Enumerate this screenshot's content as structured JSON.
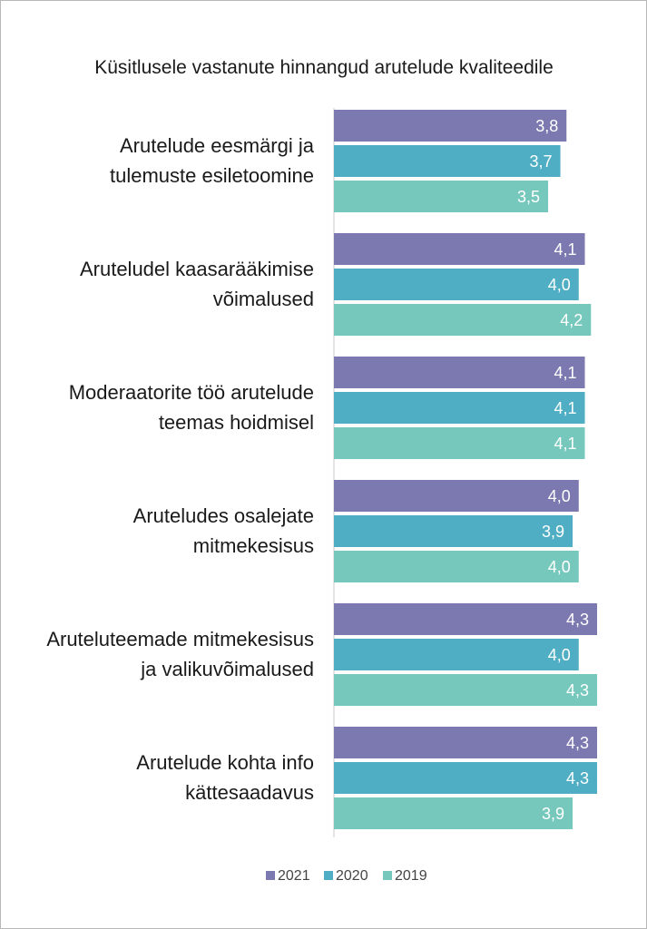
{
  "chart_data": {
    "type": "bar",
    "orientation": "horizontal",
    "title": "Küsitlusele vastanute hinnangud arutelude kvaliteedile",
    "categories": [
      "Arutelude eesmärgi ja tulemuste esiletoomine",
      "Aruteludel kaasarääkimise võimalused",
      "Moderaatorite töö arutelude teemas hoidmisel",
      "Aruteludes osalejate mitmekesisus",
      "Aruteluteemade mitmekesisus ja valikuvõimalused",
      "Arutelude kohta info kättesaadavus"
    ],
    "category_lines": [
      [
        "Arutelude eesmärgi ja",
        "tulemuste esiletoomine"
      ],
      [
        "Aruteludel kaasarääkimise",
        "võimalused"
      ],
      [
        "Moderaatorite töö arutelude",
        "teemas hoidmisel"
      ],
      [
        "Aruteludes osalejate",
        "mitmekesisus"
      ],
      [
        "Aruteluteemade mitmekesisus",
        "ja valikuvõimalused"
      ],
      [
        "Arutelude kohta info",
        "kättesaadavus"
      ]
    ],
    "series": [
      {
        "name": "2021",
        "color": "#7b79b0",
        "values": [
          3.8,
          4.1,
          4.1,
          4.0,
          4.3,
          4.3
        ],
        "labels": [
          "3,8",
          "4,1",
          "4,1",
          "4,0",
          "4,3",
          "4,3"
        ]
      },
      {
        "name": "2020",
        "color": "#4faec4",
        "values": [
          3.7,
          4.0,
          4.1,
          3.9,
          4.0,
          4.3
        ],
        "labels": [
          "3,7",
          "4,0",
          "4,1",
          "3,9",
          "4,0",
          "4,3"
        ]
      },
      {
        "name": "2019",
        "color": "#77c8bc",
        "values": [
          3.5,
          4.2,
          4.1,
          4.0,
          4.3,
          3.9
        ],
        "labels": [
          "3,5",
          "4,2",
          "4,1",
          "4,0",
          "4,3",
          "3,9"
        ]
      }
    ],
    "xlim": [
      0,
      4.3
    ],
    "grid": false,
    "legend": "bottom-center"
  }
}
